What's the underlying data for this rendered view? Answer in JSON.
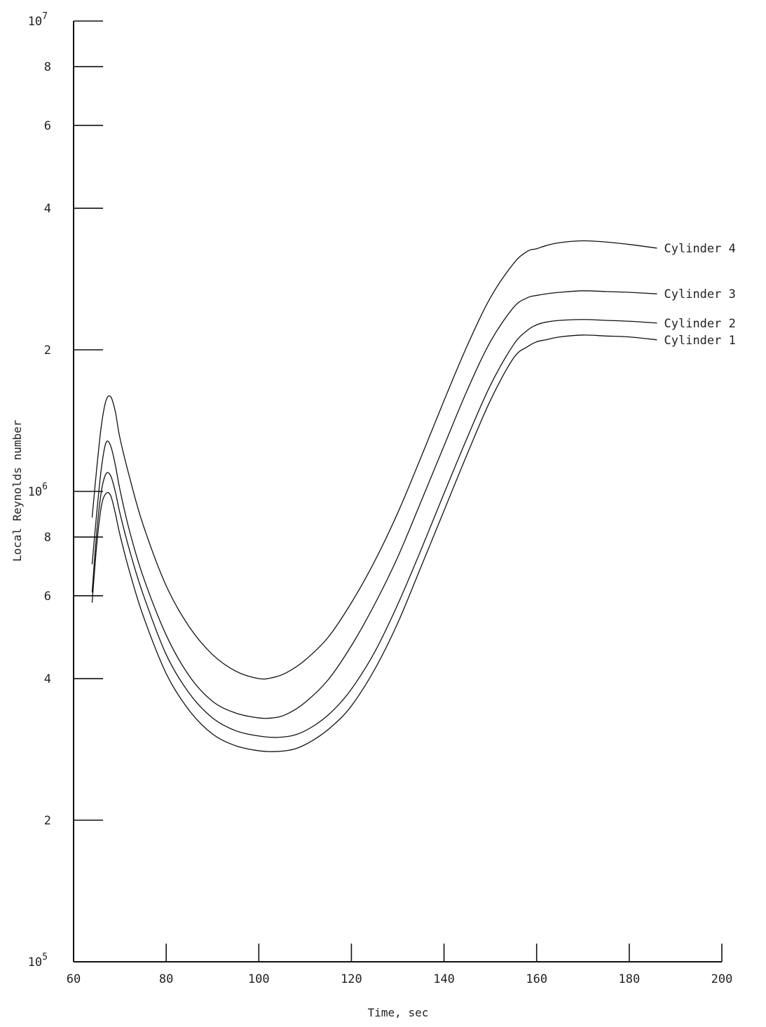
{
  "chart_data": {
    "type": "line",
    "title": "",
    "xlabel": "Time, sec",
    "ylabel": "Local Reynolds number",
    "yscale": "log",
    "xlim": [
      60,
      200
    ],
    "ylim": [
      100000,
      10000000
    ],
    "grid": false,
    "legend": "none",
    "x_ticks": [
      {
        "value": 60,
        "label": "60"
      },
      {
        "value": 80,
        "label": "80"
      },
      {
        "value": 100,
        "label": "100"
      },
      {
        "value": 120,
        "label": "120"
      },
      {
        "value": 140,
        "label": "140"
      },
      {
        "value": 160,
        "label": "160"
      },
      {
        "value": 180,
        "label": "180"
      },
      {
        "value": 200,
        "label": "200"
      }
    ],
    "y_ticks": [
      {
        "value": 100000,
        "base": "10",
        "exp": "5",
        "label": ""
      },
      {
        "value": 200000,
        "base": "",
        "exp": "",
        "label": "2"
      },
      {
        "value": 400000,
        "base": "",
        "exp": "",
        "label": "4"
      },
      {
        "value": 600000,
        "base": "",
        "exp": "",
        "label": "6"
      },
      {
        "value": 800000,
        "base": "",
        "exp": "",
        "label": "8"
      },
      {
        "value": 1000000,
        "base": "10",
        "exp": "6",
        "label": ""
      },
      {
        "value": 2000000,
        "base": "",
        "exp": "",
        "label": "2"
      },
      {
        "value": 4000000,
        "base": "",
        "exp": "",
        "label": "4"
      },
      {
        "value": 6000000,
        "base": "",
        "exp": "",
        "label": "6"
      },
      {
        "value": 8000000,
        "base": "",
        "exp": "",
        "label": "8"
      },
      {
        "value": 10000000,
        "base": "10",
        "exp": "7",
        "label": ""
      }
    ],
    "series": [
      {
        "name": "Cylinder 4",
        "x": [
          64,
          65,
          66,
          67,
          68,
          69,
          70,
          72,
          75,
          80,
          85,
          90,
          95,
          100,
          103,
          106,
          110,
          115,
          120,
          125,
          130,
          135,
          140,
          145,
          150,
          155,
          158,
          160,
          162,
          165,
          170,
          175,
          180,
          186
        ],
        "y": [
          880000,
          1120000,
          1380000,
          1560000,
          1590000,
          1480000,
          1300000,
          1080000,
          850000,
          630000,
          515000,
          450000,
          415000,
          400000,
          402000,
          412000,
          438000,
          490000,
          580000,
          710000,
          900000,
          1180000,
          1560000,
          2040000,
          2580000,
          3050000,
          3240000,
          3280000,
          3330000,
          3380000,
          3410000,
          3390000,
          3350000,
          3290000
        ]
      },
      {
        "name": "Cylinder 3",
        "x": [
          64,
          65,
          66,
          67,
          68,
          69,
          70,
          72,
          75,
          80,
          85,
          90,
          95,
          100,
          103,
          106,
          110,
          115,
          120,
          125,
          130,
          135,
          140,
          145,
          150,
          155,
          158,
          160,
          162,
          165,
          170,
          175,
          180,
          186
        ],
        "y": [
          700000,
          900000,
          1120000,
          1270000,
          1250000,
          1140000,
          1010000,
          830000,
          660000,
          495000,
          405000,
          358000,
          338000,
          330000,
          330000,
          336000,
          356000,
          398000,
          470000,
          575000,
          725000,
          950000,
          1250000,
          1640000,
          2080000,
          2460000,
          2580000,
          2610000,
          2630000,
          2650000,
          2670000,
          2660000,
          2650000,
          2630000
        ]
      },
      {
        "name": "Cylinder 2",
        "x": [
          64,
          65,
          66,
          67,
          68,
          69,
          70,
          72,
          75,
          80,
          85,
          90,
          95,
          100,
          104,
          108,
          112,
          116,
          120,
          125,
          130,
          135,
          140,
          145,
          150,
          155,
          158,
          160,
          162,
          165,
          170,
          175,
          180,
          186
        ],
        "y": [
          610000,
          820000,
          1000000,
          1090000,
          1080000,
          1000000,
          900000,
          755000,
          605000,
          450000,
          372000,
          330000,
          310000,
          302000,
          300000,
          304000,
          318000,
          342000,
          380000,
          455000,
          575000,
          750000,
          990000,
          1300000,
          1680000,
          2050000,
          2200000,
          2260000,
          2290000,
          2310000,
          2320000,
          2310000,
          2300000,
          2280000
        ]
      },
      {
        "name": "Cylinder 1",
        "x": [
          64,
          65,
          66,
          67,
          68,
          69,
          70,
          72,
          75,
          80,
          85,
          90,
          95,
          100,
          104,
          108,
          112,
          116,
          120,
          125,
          130,
          135,
          140,
          145,
          150,
          155,
          158,
          160,
          162,
          165,
          170,
          175,
          180,
          186
        ],
        "y": [
          580000,
          770000,
          930000,
          990000,
          980000,
          900000,
          810000,
          680000,
          545000,
          410000,
          342000,
          305000,
          288000,
          281000,
          280000,
          284000,
          297000,
          318000,
          350000,
          418000,
          525000,
          690000,
          910000,
          1200000,
          1560000,
          1920000,
          2030000,
          2080000,
          2100000,
          2130000,
          2150000,
          2140000,
          2130000,
          2100000
        ]
      }
    ]
  }
}
